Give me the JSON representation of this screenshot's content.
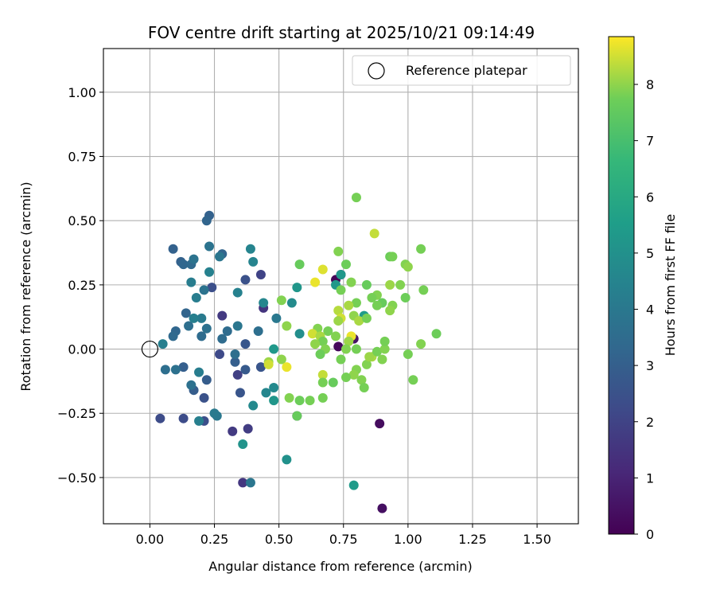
{
  "chart_data": {
    "type": "scatter",
    "title": "FOV centre drift starting at 2025/10/21 09:14:49",
    "xlabel": "Angular distance from reference (arcmin)",
    "ylabel": "Rotation from reference (arcmin)",
    "xlim": [
      -0.18,
      1.66
    ],
    "ylim": [
      -0.68,
      1.17
    ],
    "x_ticks": [
      0.0,
      0.25,
      0.5,
      0.75,
      1.0,
      1.25,
      1.5
    ],
    "x_tick_labels": [
      "0.00",
      "0.25",
      "0.50",
      "0.75",
      "1.00",
      "1.25",
      "1.50"
    ],
    "y_ticks": [
      -0.5,
      -0.25,
      0.0,
      0.25,
      0.5,
      0.75,
      1.0
    ],
    "y_tick_labels": [
      "−0.50",
      "−0.25",
      "0.00",
      "0.25",
      "0.50",
      "0.75",
      "1.00"
    ],
    "grid": true,
    "legend": {
      "position": "top-right",
      "entries": [
        "Reference platepar"
      ]
    },
    "reference_point": {
      "x": 0.0,
      "y": 0.0
    },
    "colorbar": {
      "label": "Hours from first FF file",
      "range": [
        0,
        8.85
      ],
      "ticks": [
        0,
        1,
        2,
        3,
        4,
        5,
        6,
        7,
        8
      ],
      "tick_labels": [
        "0",
        "1",
        "2",
        "3",
        "4",
        "5",
        "6",
        "7",
        "8"
      ],
      "colormap": "viridis"
    },
    "points": [
      {
        "x": 0.72,
        "y": 0.27,
        "h": 0.1
      },
      {
        "x": 0.74,
        "y": 0.29,
        "h": 0.3
      },
      {
        "x": 0.73,
        "y": 0.01,
        "h": 0.2
      },
      {
        "x": 0.79,
        "y": 0.04,
        "h": 0.5
      },
      {
        "x": 0.89,
        "y": -0.29,
        "h": 0.3
      },
      {
        "x": 0.9,
        "y": -0.62,
        "h": 0.4
      },
      {
        "x": 0.57,
        "y": -0.26,
        "h": 1.0
      },
      {
        "x": 0.44,
        "y": 0.16,
        "h": 1.5
      },
      {
        "x": 0.36,
        "y": -0.52,
        "h": 1.6
      },
      {
        "x": 0.32,
        "y": -0.32,
        "h": 1.7
      },
      {
        "x": 0.38,
        "y": -0.31,
        "h": 1.8
      },
      {
        "x": 0.28,
        "y": 0.13,
        "h": 1.7
      },
      {
        "x": 0.34,
        "y": -0.1,
        "h": 1.9
      },
      {
        "x": 0.43,
        "y": 0.29,
        "h": 2.0
      },
      {
        "x": 0.27,
        "y": -0.02,
        "h": 2.2
      },
      {
        "x": 0.04,
        "y": -0.27,
        "h": 2.3
      },
      {
        "x": 0.13,
        "y": -0.27,
        "h": 2.3
      },
      {
        "x": 0.21,
        "y": -0.28,
        "h": 2.4
      },
      {
        "x": 0.24,
        "y": 0.24,
        "h": 2.4
      },
      {
        "x": 0.37,
        "y": 0.27,
        "h": 2.5
      },
      {
        "x": 0.21,
        "y": -0.19,
        "h": 2.5
      },
      {
        "x": 0.35,
        "y": -0.17,
        "h": 2.6
      },
      {
        "x": 0.43,
        "y": -0.07,
        "h": 2.6
      },
      {
        "x": 0.37,
        "y": 0.02,
        "h": 2.7
      },
      {
        "x": 0.37,
        "y": -0.08,
        "h": 2.8
      },
      {
        "x": 0.22,
        "y": -0.12,
        "h": 2.9
      },
      {
        "x": 0.17,
        "y": -0.16,
        "h": 2.9
      },
      {
        "x": 0.13,
        "y": -0.07,
        "h": 3.0
      },
      {
        "x": 0.33,
        "y": -0.05,
        "h": 3.0
      },
      {
        "x": 0.23,
        "y": 0.52,
        "h": 3.1
      },
      {
        "x": 0.22,
        "y": 0.5,
        "h": 3.2
      },
      {
        "x": 0.09,
        "y": 0.39,
        "h": 3.1
      },
      {
        "x": 0.12,
        "y": 0.34,
        "h": 3.1
      },
      {
        "x": 0.28,
        "y": 0.37,
        "h": 3.2
      },
      {
        "x": 0.14,
        "y": 0.14,
        "h": 3.2
      },
      {
        "x": 0.13,
        "y": 0.33,
        "h": 3.3
      },
      {
        "x": 0.16,
        "y": 0.33,
        "h": 3.4
      },
      {
        "x": 0.1,
        "y": 0.07,
        "h": 3.3
      },
      {
        "x": 0.09,
        "y": 0.05,
        "h": 3.4
      },
      {
        "x": 0.2,
        "y": 0.05,
        "h": 3.5
      },
      {
        "x": 0.3,
        "y": 0.07,
        "h": 3.5
      },
      {
        "x": 0.33,
        "y": -0.02,
        "h": 3.6
      },
      {
        "x": 0.42,
        "y": 0.07,
        "h": 3.6
      },
      {
        "x": 0.28,
        "y": 0.04,
        "h": 3.5
      },
      {
        "x": 0.15,
        "y": 0.09,
        "h": 3.6
      },
      {
        "x": 0.06,
        "y": -0.08,
        "h": 3.6
      },
      {
        "x": 0.1,
        "y": -0.08,
        "h": 3.7
      },
      {
        "x": 0.16,
        "y": -0.14,
        "h": 3.7
      },
      {
        "x": 0.22,
        "y": 0.08,
        "h": 3.7
      },
      {
        "x": 0.21,
        "y": 0.23,
        "h": 3.8
      },
      {
        "x": 0.23,
        "y": 0.4,
        "h": 3.8
      },
      {
        "x": 0.17,
        "y": 0.35,
        "h": 3.8
      },
      {
        "x": 0.27,
        "y": 0.36,
        "h": 3.9
      },
      {
        "x": 0.39,
        "y": -0.52,
        "h": 3.9
      },
      {
        "x": 0.34,
        "y": 0.09,
        "h": 3.9
      },
      {
        "x": 0.49,
        "y": 0.12,
        "h": 4.0
      },
      {
        "x": 0.26,
        "y": -0.26,
        "h": 4.0
      },
      {
        "x": 0.25,
        "y": -0.25,
        "h": 4.1
      },
      {
        "x": 0.2,
        "y": 0.12,
        "h": 4.1
      },
      {
        "x": 0.19,
        "y": -0.09,
        "h": 4.2
      },
      {
        "x": 0.16,
        "y": 0.26,
        "h": 4.2
      },
      {
        "x": 0.19,
        "y": -0.28,
        "h": 4.3
      },
      {
        "x": 0.18,
        "y": 0.2,
        "h": 4.2
      },
      {
        "x": 0.05,
        "y": 0.02,
        "h": 4.3
      },
      {
        "x": 0.17,
        "y": 0.12,
        "h": 4.3
      },
      {
        "x": 0.23,
        "y": 0.3,
        "h": 4.4
      },
      {
        "x": 0.34,
        "y": 0.22,
        "h": 4.4
      },
      {
        "x": 0.4,
        "y": 0.34,
        "h": 4.5
      },
      {
        "x": 0.39,
        "y": 0.39,
        "h": 4.5
      },
      {
        "x": 0.44,
        "y": 0.18,
        "h": 4.6
      },
      {
        "x": 0.45,
        "y": -0.17,
        "h": 4.6
      },
      {
        "x": 0.48,
        "y": -0.15,
        "h": 4.7
      },
      {
        "x": 0.4,
        "y": -0.22,
        "h": 4.7
      },
      {
        "x": 0.55,
        "y": 0.18,
        "h": 4.8
      },
      {
        "x": 0.58,
        "y": 0.06,
        "h": 4.9
      },
      {
        "x": 0.53,
        "y": -0.43,
        "h": 5.0
      },
      {
        "x": 0.36,
        "y": -0.37,
        "h": 5.1
      },
      {
        "x": 0.48,
        "y": -0.2,
        "h": 5.2
      },
      {
        "x": 0.57,
        "y": 0.24,
        "h": 5.2
      },
      {
        "x": 0.72,
        "y": 0.25,
        "h": 5.3
      },
      {
        "x": 0.74,
        "y": 0.29,
        "h": 5.3
      },
      {
        "x": 0.48,
        "y": -0.0,
        "h": 5.3
      },
      {
        "x": 0.79,
        "y": -0.53,
        "h": 5.4
      },
      {
        "x": 0.83,
        "y": 0.13,
        "h": 5.4
      },
      {
        "x": 0.8,
        "y": 0.59,
        "h": 7.8
      },
      {
        "x": 0.87,
        "y": 0.45,
        "h": 8.4
      },
      {
        "x": 0.73,
        "y": 0.38,
        "h": 7.9
      },
      {
        "x": 0.76,
        "y": 0.33,
        "h": 7.7
      },
      {
        "x": 0.58,
        "y": 0.33,
        "h": 7.6
      },
      {
        "x": 0.67,
        "y": 0.31,
        "h": 8.6
      },
      {
        "x": 0.64,
        "y": 0.26,
        "h": 8.7
      },
      {
        "x": 0.78,
        "y": 0.26,
        "h": 7.9
      },
      {
        "x": 0.74,
        "y": 0.23,
        "h": 7.8
      },
      {
        "x": 0.84,
        "y": 0.25,
        "h": 7.6
      },
      {
        "x": 0.88,
        "y": 0.21,
        "h": 7.9
      },
      {
        "x": 0.86,
        "y": 0.2,
        "h": 7.8
      },
      {
        "x": 0.93,
        "y": 0.36,
        "h": 7.7
      },
      {
        "x": 0.94,
        "y": 0.36,
        "h": 7.8
      },
      {
        "x": 0.99,
        "y": 0.33,
        "h": 7.9
      },
      {
        "x": 1.0,
        "y": 0.32,
        "h": 8.0
      },
      {
        "x": 1.05,
        "y": 0.39,
        "h": 7.8
      },
      {
        "x": 0.93,
        "y": 0.25,
        "h": 8.1
      },
      {
        "x": 0.97,
        "y": 0.25,
        "h": 7.9
      },
      {
        "x": 1.06,
        "y": 0.23,
        "h": 7.8
      },
      {
        "x": 0.99,
        "y": 0.2,
        "h": 7.7
      },
      {
        "x": 0.9,
        "y": 0.18,
        "h": 7.6
      },
      {
        "x": 0.88,
        "y": 0.17,
        "h": 7.8
      },
      {
        "x": 0.94,
        "y": 0.17,
        "h": 7.9
      },
      {
        "x": 0.93,
        "y": 0.15,
        "h": 8.0
      },
      {
        "x": 0.8,
        "y": 0.18,
        "h": 7.8
      },
      {
        "x": 0.77,
        "y": 0.17,
        "h": 8.2
      },
      {
        "x": 0.73,
        "y": 0.15,
        "h": 8.3
      },
      {
        "x": 0.74,
        "y": 0.12,
        "h": 8.5
      },
      {
        "x": 0.79,
        "y": 0.13,
        "h": 8.0
      },
      {
        "x": 0.73,
        "y": 0.11,
        "h": 8.1
      },
      {
        "x": 0.65,
        "y": 0.08,
        "h": 7.9
      },
      {
        "x": 0.69,
        "y": 0.07,
        "h": 7.8
      },
      {
        "x": 0.63,
        "y": 0.06,
        "h": 8.5
      },
      {
        "x": 0.66,
        "y": 0.05,
        "h": 8.2
      },
      {
        "x": 0.72,
        "y": 0.05,
        "h": 7.9
      },
      {
        "x": 0.78,
        "y": 0.05,
        "h": 8.7
      },
      {
        "x": 0.77,
        "y": 0.03,
        "h": 8.1
      },
      {
        "x": 0.67,
        "y": 0.03,
        "h": 7.8
      },
      {
        "x": 0.64,
        "y": 0.02,
        "h": 8.0
      },
      {
        "x": 0.68,
        "y": 0.0,
        "h": 7.9
      },
      {
        "x": 0.66,
        "y": -0.02,
        "h": 7.7
      },
      {
        "x": 0.74,
        "y": -0.04,
        "h": 7.8
      },
      {
        "x": 0.8,
        "y": -0.08,
        "h": 7.9
      },
      {
        "x": 0.79,
        "y": -0.1,
        "h": 8.0
      },
      {
        "x": 0.76,
        "y": -0.11,
        "h": 7.8
      },
      {
        "x": 0.82,
        "y": -0.12,
        "h": 7.9
      },
      {
        "x": 0.83,
        "y": -0.15,
        "h": 7.8
      },
      {
        "x": 0.84,
        "y": -0.06,
        "h": 7.9
      },
      {
        "x": 0.86,
        "y": -0.03,
        "h": 8.2
      },
      {
        "x": 0.88,
        "y": -0.01,
        "h": 7.8
      },
      {
        "x": 0.91,
        "y": 0.0,
        "h": 7.9
      },
      {
        "x": 0.91,
        "y": 0.03,
        "h": 7.8
      },
      {
        "x": 0.9,
        "y": -0.04,
        "h": 7.9
      },
      {
        "x": 1.0,
        "y": -0.02,
        "h": 7.8
      },
      {
        "x": 1.05,
        "y": 0.02,
        "h": 7.9
      },
      {
        "x": 1.11,
        "y": 0.06,
        "h": 7.7
      },
      {
        "x": 1.02,
        "y": -0.12,
        "h": 7.8
      },
      {
        "x": 0.67,
        "y": -0.1,
        "h": 8.4
      },
      {
        "x": 0.67,
        "y": -0.13,
        "h": 7.8
      },
      {
        "x": 0.71,
        "y": -0.13,
        "h": 7.6
      },
      {
        "x": 0.62,
        "y": -0.2,
        "h": 7.8
      },
      {
        "x": 0.58,
        "y": -0.2,
        "h": 7.7
      },
      {
        "x": 0.54,
        "y": -0.19,
        "h": 7.9
      },
      {
        "x": 0.57,
        "y": -0.26,
        "h": 7.6
      },
      {
        "x": 0.67,
        "y": -0.19,
        "h": 7.8
      },
      {
        "x": 0.51,
        "y": -0.04,
        "h": 8.0
      },
      {
        "x": 0.46,
        "y": -0.05,
        "h": 8.1
      },
      {
        "x": 0.46,
        "y": -0.06,
        "h": 8.5
      },
      {
        "x": 0.53,
        "y": -0.07,
        "h": 8.7
      },
      {
        "x": 0.53,
        "y": 0.09,
        "h": 8.0
      },
      {
        "x": 0.51,
        "y": 0.19,
        "h": 7.9
      },
      {
        "x": 0.76,
        "y": 0.0,
        "h": 7.9
      },
      {
        "x": 0.8,
        "y": 0.0,
        "h": 7.8
      },
      {
        "x": 0.85,
        "y": -0.03,
        "h": 8.1
      },
      {
        "x": 0.81,
        "y": 0.11,
        "h": 8.2
      },
      {
        "x": 0.84,
        "y": 0.12,
        "h": 7.8
      }
    ]
  }
}
